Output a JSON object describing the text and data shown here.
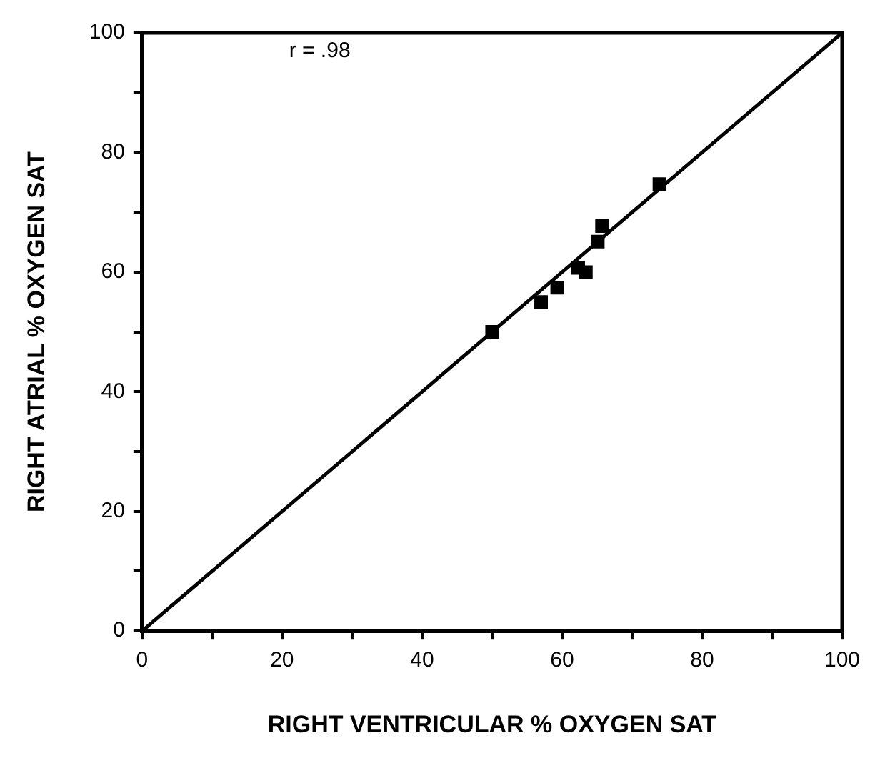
{
  "chart_data": {
    "type": "scatter",
    "xlabel": "RIGHT VENTRICULAR % OXYGEN SAT",
    "ylabel": "RIGHT ATRIAL % OXYGEN SAT",
    "xlim": [
      0,
      100
    ],
    "ylim": [
      0,
      100
    ],
    "xticks": [
      0,
      {
        "value": 10,
        "label": null
      },
      20,
      {
        "value": 30,
        "label": null
      },
      40,
      {
        "value": 50,
        "label": null
      },
      60,
      {
        "value": 70,
        "label": null
      },
      80,
      {
        "value": 90,
        "label": null
      },
      100
    ],
    "yticks": [
      0,
      {
        "value": 10,
        "label": null
      },
      20,
      {
        "value": 30,
        "label": null
      },
      40,
      {
        "value": 50,
        "label": null
      },
      60,
      {
        "value": 70,
        "label": null
      },
      80,
      {
        "value": 90,
        "label": null
      },
      100
    ],
    "grid": false,
    "legend": false,
    "annotations": [
      "r = .98"
    ],
    "series": [
      {
        "type": "scatter",
        "color": "#000000",
        "marker": "square",
        "x": [
          50,
          57,
          59.3,
          62.3,
          63.4,
          65.1,
          65.7,
          73.9
        ],
        "values": [
          50,
          55,
          57.4,
          60.7,
          60,
          65.1,
          67.7,
          74.7
        ]
      },
      {
        "type": "line",
        "color": "#000000",
        "marker": "none",
        "line_style": "solid",
        "x": [
          0,
          100
        ],
        "values": [
          0,
          100
        ]
      }
    ]
  }
}
